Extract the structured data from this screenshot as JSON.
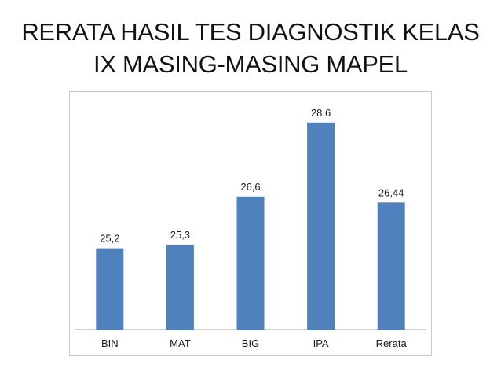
{
  "title_lines": [
    "RERATA HASIL TES DIAGNOSTIK KELAS",
    "IX MASING-MASING MAPEL"
  ],
  "chart_data": {
    "type": "bar",
    "title": "RERATA HASIL TES DIAGNOSTIK KELAS IX MASING-MASING MAPEL",
    "categories": [
      "BIN",
      "MAT",
      "BIG",
      "IPA",
      "Rerata"
    ],
    "values": [
      25.2,
      25.3,
      26.6,
      28.6,
      26.44
    ],
    "data_labels": [
      "25,2",
      "25,3",
      "26,6",
      "28,6",
      "26,44"
    ],
    "xlabel": "",
    "ylabel": "",
    "y_axis_visible": false,
    "ylim": [
      23,
      29
    ],
    "grid": false,
    "legend": "none",
    "bar_color": "#4f81bd"
  }
}
